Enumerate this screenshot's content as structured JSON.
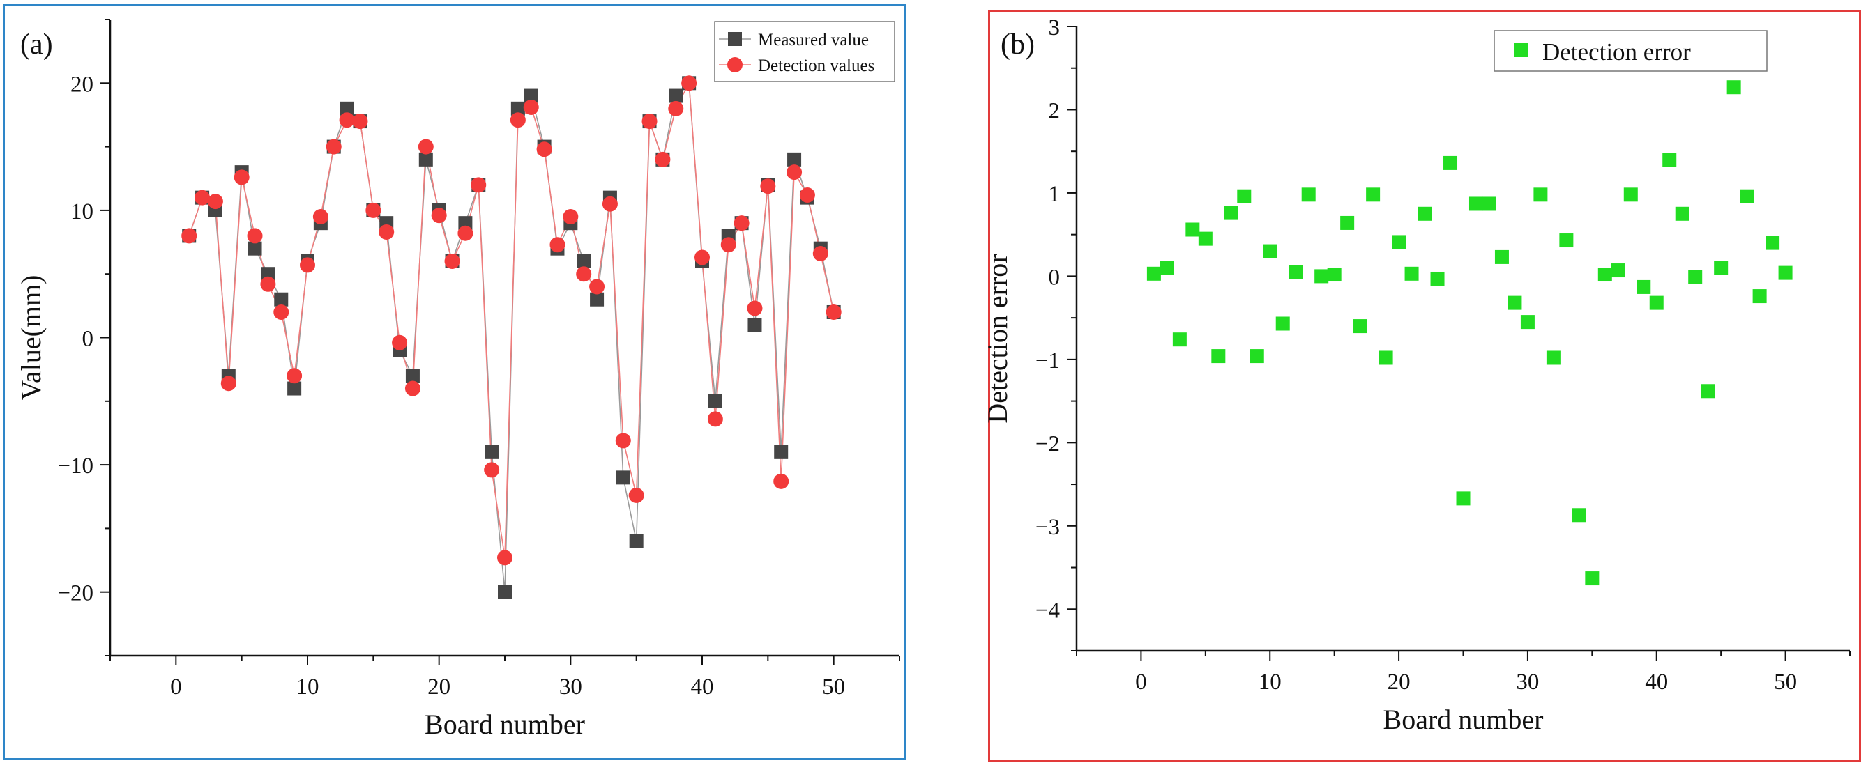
{
  "chart_data": [
    {
      "type": "line",
      "panel_label": "(a)",
      "xlabel": "Board number",
      "ylabel": "Value(mm)",
      "xlim": [
        -5,
        55
      ],
      "ylim": [
        -25,
        25
      ],
      "xticks": [
        0,
        10,
        20,
        30,
        40,
        50
      ],
      "yticks": [
        -20,
        -10,
        0,
        10,
        20
      ],
      "legend_position": "top-right",
      "x": [
        1,
        2,
        3,
        4,
        5,
        6,
        7,
        8,
        9,
        10,
        11,
        12,
        13,
        14,
        15,
        16,
        17,
        18,
        19,
        20,
        21,
        22,
        23,
        24,
        25,
        26,
        27,
        28,
        29,
        30,
        31,
        32,
        33,
        34,
        35,
        36,
        37,
        38,
        39,
        40,
        41,
        42,
        43,
        44,
        45,
        46,
        47,
        48,
        49,
        50
      ],
      "series": [
        {
          "name": "Measured value",
          "marker": "square",
          "marker_color": "#454545",
          "line_color": "#9a9a9a",
          "values": [
            8,
            11,
            10,
            -3,
            13,
            7,
            5,
            3,
            -4,
            6,
            9,
            15,
            18,
            17,
            10,
            9,
            -1,
            -3,
            14,
            10,
            6,
            9,
            12,
            -9,
            -20,
            18,
            19,
            15,
            7,
            9,
            6,
            3,
            11,
            -11,
            -16,
            17,
            14,
            19,
            20,
            6,
            -5,
            8,
            9,
            1,
            12,
            -9,
            14,
            11,
            7,
            2
          ]
        },
        {
          "name": "Detection values",
          "marker": "circle",
          "marker_color": "#f23a3a",
          "line_color": "#f07c7c",
          "values": [
            8,
            11,
            10.7,
            -3.6,
            12.6,
            8,
            4.2,
            2,
            -3,
            5.7,
            9.5,
            15,
            17.1,
            17,
            10,
            8.3,
            -0.4,
            -4,
            15,
            9.6,
            6,
            8.2,
            12,
            -10.4,
            -17.3,
            17.1,
            18.1,
            14.8,
            7.3,
            9.5,
            5,
            4,
            10.5,
            -8.1,
            -12.4,
            17,
            14,
            18,
            20,
            6.3,
            -6.4,
            7.3,
            9,
            2.3,
            11.9,
            -11.3,
            13,
            11.2,
            6.6,
            2
          ]
        }
      ]
    },
    {
      "type": "scatter",
      "panel_label": "(b)",
      "xlabel": "Board number",
      "ylabel": "Detection error",
      "xlim": [
        -5,
        55
      ],
      "ylim": [
        -4.5,
        3
      ],
      "xticks": [
        0,
        10,
        20,
        30,
        40,
        50
      ],
      "yticks": [
        -4,
        -3,
        -2,
        -1,
        0,
        1,
        2,
        3
      ],
      "legend_position": "top-right",
      "x": [
        1,
        2,
        3,
        4,
        5,
        6,
        7,
        8,
        9,
        10,
        11,
        12,
        13,
        14,
        15,
        16,
        17,
        18,
        19,
        20,
        21,
        22,
        23,
        24,
        25,
        26,
        27,
        28,
        29,
        30,
        31,
        32,
        33,
        34,
        35,
        36,
        37,
        38,
        39,
        40,
        41,
        42,
        43,
        44,
        45,
        46,
        47,
        48,
        49,
        50
      ],
      "series": [
        {
          "name": "Detection error",
          "marker": "square",
          "marker_color": "#22dd22",
          "values": [
            0.03,
            0.1,
            -0.76,
            0.56,
            0.45,
            -0.96,
            0.76,
            0.96,
            -0.96,
            0.3,
            -0.57,
            0.05,
            0.98,
            0,
            0.02,
            0.64,
            -0.6,
            0.98,
            -0.98,
            0.41,
            0.03,
            0.75,
            -0.03,
            1.36,
            -2.67,
            0.87,
            0.87,
            0.23,
            -0.32,
            -0.55,
            0.98,
            -0.98,
            0.43,
            -2.87,
            -3.63,
            0.02,
            0.07,
            0.98,
            -0.13,
            -0.32,
            1.4,
            0.75,
            -0.01,
            -1.38,
            0.1,
            2.27,
            0.96,
            -0.24,
            0.4,
            0.04
          ]
        }
      ]
    }
  ]
}
